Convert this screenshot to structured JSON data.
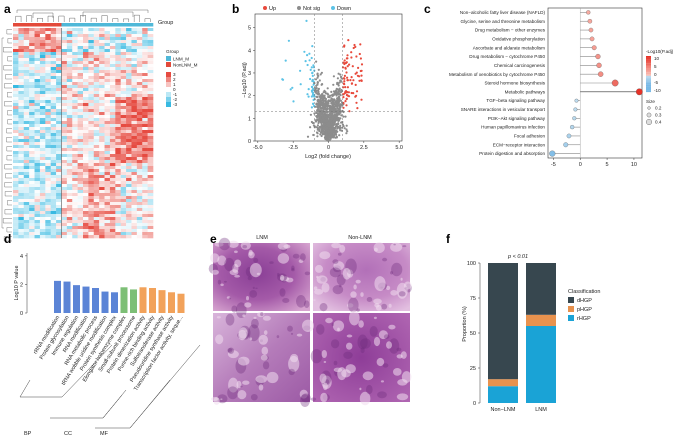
{
  "panels": {
    "a": "a",
    "b": "b",
    "c": "c",
    "d": "d",
    "e": "e",
    "f": "f"
  },
  "heatmap": {
    "group_title": "Group",
    "legend_title": "Group",
    "groups": [
      {
        "name": "LNM_M",
        "color": "#4fb8d8"
      },
      {
        "name": "NonLNM_M",
        "color": "#e34a3a"
      }
    ],
    "scale_ticks": [
      "3",
      "2",
      "1",
      "0",
      "-1",
      "-2",
      "-3"
    ]
  },
  "volcano": {
    "legend": [
      {
        "name": "Up",
        "color": "#e84a3c"
      },
      {
        "name": "Not sig",
        "color": "#8c8c8c"
      },
      {
        "name": "Down",
        "color": "#5cc3e6"
      }
    ],
    "ylabel": "−Log10 (P.adj)",
    "xlabel": "Log2 (fold change)",
    "xticks": [
      "-5.0",
      "-2.5",
      "0",
      "2.5",
      "5.0"
    ],
    "yticks": [
      "0",
      "1",
      "2",
      "3",
      "4",
      "5"
    ],
    "xlim": [
      -5.2,
      5.2
    ],
    "ylim": [
      0,
      5.6
    ],
    "sig_y": 1.3,
    "fc_x": [
      -1,
      1
    ]
  },
  "lollipop": {
    "pathways": [
      "Non−alcoholic fatty liver disease (NAFLD)",
      "Glycine, serine and threonine metabolism",
      "Drug metabolism − other enzymes",
      "Oxidative phosphorylation",
      "Ascorbate and aldarate metabolism",
      "Drug metabolism − cytochrome P450",
      "Chemical carcinogenesis",
      "Metabolism of xenobiotics by cytochrome P450",
      "Steroid hormone biosynthesis",
      "Metabolic pathways",
      "TGF−beta signaling pathway",
      "SNARE interactions in vesicular transport",
      "PI3K−Akt signaling pathway",
      "Human papillomavirus infection",
      "Focal adhesion",
      "ECM−receptor interaction",
      "Protein digestion and absorption"
    ],
    "values": [
      1.5,
      1.8,
      2.0,
      2.2,
      2.6,
      3.3,
      3.5,
      3.8,
      6.5,
      11.0,
      -0.7,
      -0.9,
      -1.1,
      -1.5,
      -2.1,
      -2.7,
      -5.2
    ],
    "xticks": [
      "-5",
      "0",
      "5",
      "10"
    ],
    "xlim": [
      -6,
      11.5
    ],
    "color_title": "-Log10(P.adj)",
    "color_ticks": [
      "10",
      "5",
      "0",
      "-5",
      "-10"
    ],
    "size_title": "Size",
    "size_ticks": [
      "0.2",
      "0.3",
      "0.4"
    ]
  },
  "bars": {
    "ylabel": "Log10 P value",
    "yticks": [
      "0",
      "2",
      "4"
    ],
    "ylim": [
      0,
      4.2
    ],
    "categories": [
      "rRNA modification",
      "Protein glycosylation",
      "Immune regulation",
      "RNA modification",
      "RNA metabolic process",
      "tRNA wobble uridine modification",
      "Protein synthesis complex",
      "Elongator holoenzyme complex",
      "Small-subunit processome",
      "Protein dimerization activity",
      "Purine-rich binding activity",
      "Sulfotransferase activity",
      "Pseudouridine synthase activity",
      "Transcription factor activity, seque..."
    ],
    "values": [
      2.25,
      2.2,
      1.95,
      1.85,
      1.75,
      1.5,
      1.45,
      1.8,
      1.65,
      1.8,
      1.75,
      1.6,
      1.45,
      1.35
    ],
    "colors": [
      "#5b84d6",
      "#5b84d6",
      "#5b84d6",
      "#5b84d6",
      "#5b84d6",
      "#5b84d6",
      "#5b84d6",
      "#7dbf76",
      "#7dbf76",
      "#f2a25a",
      "#f2a25a",
      "#f2a25a",
      "#f2a25a",
      "#f2a25a"
    ],
    "groups": [
      {
        "name": "BP"
      },
      {
        "name": "CC"
      },
      {
        "name": "MF"
      }
    ]
  },
  "histology": {
    "col1": "LNM",
    "col2": "Non-LNM"
  },
  "stacked": {
    "pvalue": "p < 0.01",
    "ylabel": "Proportion (%)",
    "yticks": [
      "0",
      "25",
      "50",
      "75",
      "100"
    ],
    "categories": [
      "Non−LNM",
      "LNM"
    ],
    "series": [
      {
        "name": "dHGP",
        "color": "#37474f",
        "values": [
          83,
          37
        ]
      },
      {
        "name": "pHGP",
        "color": "#e8924e",
        "values": [
          5,
          8
        ]
      },
      {
        "name": "rHGP",
        "color": "#1aa3d6",
        "values": [
          12,
          55
        ]
      }
    ],
    "legend_title": "Classification"
  }
}
